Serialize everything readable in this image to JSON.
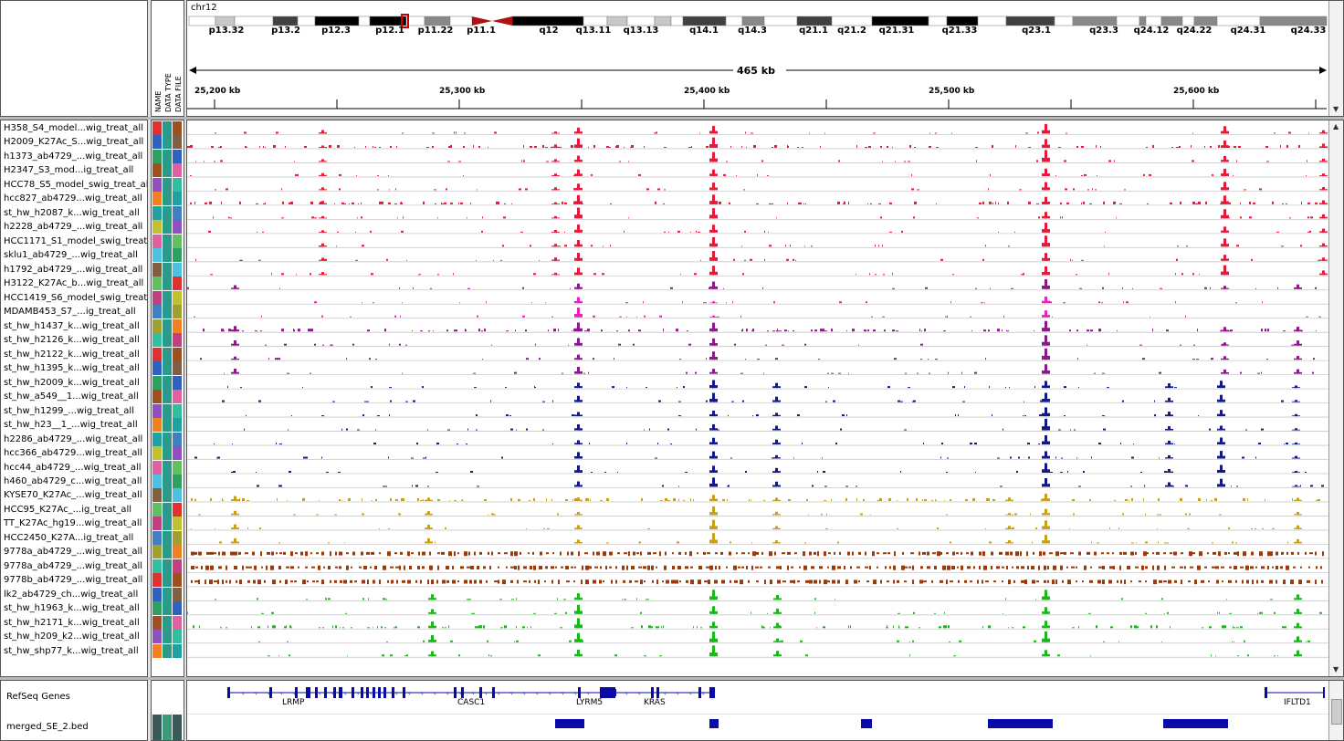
{
  "chromosome": "chr12",
  "span_label": "465 kb",
  "ruler_ticks": [
    "25,200 kb",
    "25,300 kb",
    "25,400 kb",
    "25,500 kb",
    "25,600 kb"
  ],
  "bands": [
    "p13.32",
    "p13.2",
    "p12.3",
    "p12.1",
    "p11.22",
    "p11.1",
    "q12",
    "q13.11",
    "q13.13",
    "q14.1",
    "q14.3",
    "q21.1",
    "q21.2",
    "q21.31",
    "q21.33",
    "q23.1",
    "q23.3",
    "q24.12",
    "q24.22",
    "q24.31",
    "q24.33"
  ],
  "attribute_headers": [
    "NAME",
    "DATA TYPE",
    "DATA FILE"
  ],
  "tracks": [
    {
      "name": "H358_S4_model...wig_treat_all",
      "color": "#e8183a",
      "group": "red"
    },
    {
      "name": "H2009_K27Ac_S...wig_treat_all",
      "color": "#e8183a",
      "group": "red"
    },
    {
      "name": "h1373_ab4729_...wig_treat_all",
      "color": "#e8183a",
      "group": "red"
    },
    {
      "name": "H2347_S3_mod...ig_treat_all",
      "color": "#e8183a",
      "group": "red"
    },
    {
      "name": "HCC78_S5_model_swig_treat_al",
      "color": "#e8183a",
      "group": "red"
    },
    {
      "name": "hcc827_ab4729...wig_treat_all",
      "color": "#e8183a",
      "group": "red"
    },
    {
      "name": "st_hw_h2087_k...wig_treat_all",
      "color": "#e8183a",
      "group": "red"
    },
    {
      "name": "h2228_ab4729_...wig_treat_all",
      "color": "#e8183a",
      "group": "red"
    },
    {
      "name": "HCC1171_S1_model_swig_treat_",
      "color": "#e8183a",
      "group": "red"
    },
    {
      "name": "sklu1_ab4729_...wig_treat_all",
      "color": "#e8183a",
      "group": "red"
    },
    {
      "name": "h1792_ab4729_...wig_treat_all",
      "color": "#e8183a",
      "group": "red"
    },
    {
      "name": "H3122_K27Ac_b...wig_treat_all",
      "color": "#8a1a8a",
      "group": "purple"
    },
    {
      "name": "HCC1419_S6_model_swig_treat_",
      "color": "#ee1fbf",
      "group": "magenta"
    },
    {
      "name": "MDAMB453_S7_...ig_treat_all",
      "color": "#ee1fbf",
      "group": "magenta"
    },
    {
      "name": "st_hw_h1437_k...wig_treat_all",
      "color": "#8a1a8a",
      "group": "purple"
    },
    {
      "name": "st_hw_h2126_k...wig_treat_all",
      "color": "#8a1a8a",
      "group": "purple"
    },
    {
      "name": "st_hw_h2122_k...wig_treat_all",
      "color": "#8a1a8a",
      "group": "purple"
    },
    {
      "name": "st_hw_h1395_k...wig_treat_all",
      "color": "#8a1a8a",
      "group": "purple"
    },
    {
      "name": "st_hw_h2009_k...wig_treat_all",
      "color": "#10188a",
      "group": "blue"
    },
    {
      "name": "st_hw_a549__1...wig_treat_all",
      "color": "#10188a",
      "group": "blue"
    },
    {
      "name": "st_hw_h1299_...wig_treat_all",
      "color": "#10188a",
      "group": "blue"
    },
    {
      "name": "st_hw_h23__1_...wig_treat_all",
      "color": "#10188a",
      "group": "blue"
    },
    {
      "name": "h2286_ab4729_...wig_treat_all",
      "color": "#10188a",
      "group": "blue"
    },
    {
      "name": "hcc366_ab4729...wig_treat_all",
      "color": "#10188a",
      "group": "blue"
    },
    {
      "name": "hcc44_ab4729_...wig_treat_all",
      "color": "#10188a",
      "group": "blue"
    },
    {
      "name": "h460_ab4729_c...wig_treat_all",
      "color": "#10188a",
      "group": "blue"
    },
    {
      "name": "KYSE70_K27Ac_...wig_treat_all",
      "color": "#c8a018",
      "group": "gold"
    },
    {
      "name": "HCC95_K27Ac_...ig_treat_all",
      "color": "#c8a018",
      "group": "gold"
    },
    {
      "name": "TT_K27Ac_hg19...wig_treat_all",
      "color": "#c8a018",
      "group": "gold"
    },
    {
      "name": "HCC2450_K27A...ig_treat_all",
      "color": "#c8a018",
      "group": "gold"
    },
    {
      "name": "9778a_ab4729_...wig_treat_all",
      "color": "#9a3a0a",
      "group": "brown"
    },
    {
      "name": "9778a_ab4729_...wig_treat_all",
      "color": "#9a3a0a",
      "group": "brown"
    },
    {
      "name": "9778b_ab4729_...wig_treat_all",
      "color": "#9a3a0a",
      "group": "brown"
    },
    {
      "name": "lk2_ab4729_ch...wig_treat_all",
      "color": "#18b818",
      "group": "green"
    },
    {
      "name": "st_hw_h1963_k...wig_treat_all",
      "color": "#18b818",
      "group": "green"
    },
    {
      "name": "st_hw_h2171_k...wig_treat_all",
      "color": "#18b818",
      "group": "green"
    },
    {
      "name": "st_hw_h209_k2...wig_treat_all",
      "color": "#18b818",
      "group": "green"
    },
    {
      "name": "st_hw_shp77_k...wig_treat_all",
      "color": "#18b818",
      "group": "green"
    }
  ],
  "annotation_tracks": [
    {
      "name": "RefSeq Genes"
    },
    {
      "name": "merged_SE_2.bed"
    }
  ],
  "genes": [
    "LRMP",
    "CASC1",
    "LYRM5",
    "KRAS",
    "IFLTD1"
  ],
  "colors": {
    "gene": "#0a0aa8",
    "band_marker": "#cc0000",
    "centromere": "#b01010"
  }
}
